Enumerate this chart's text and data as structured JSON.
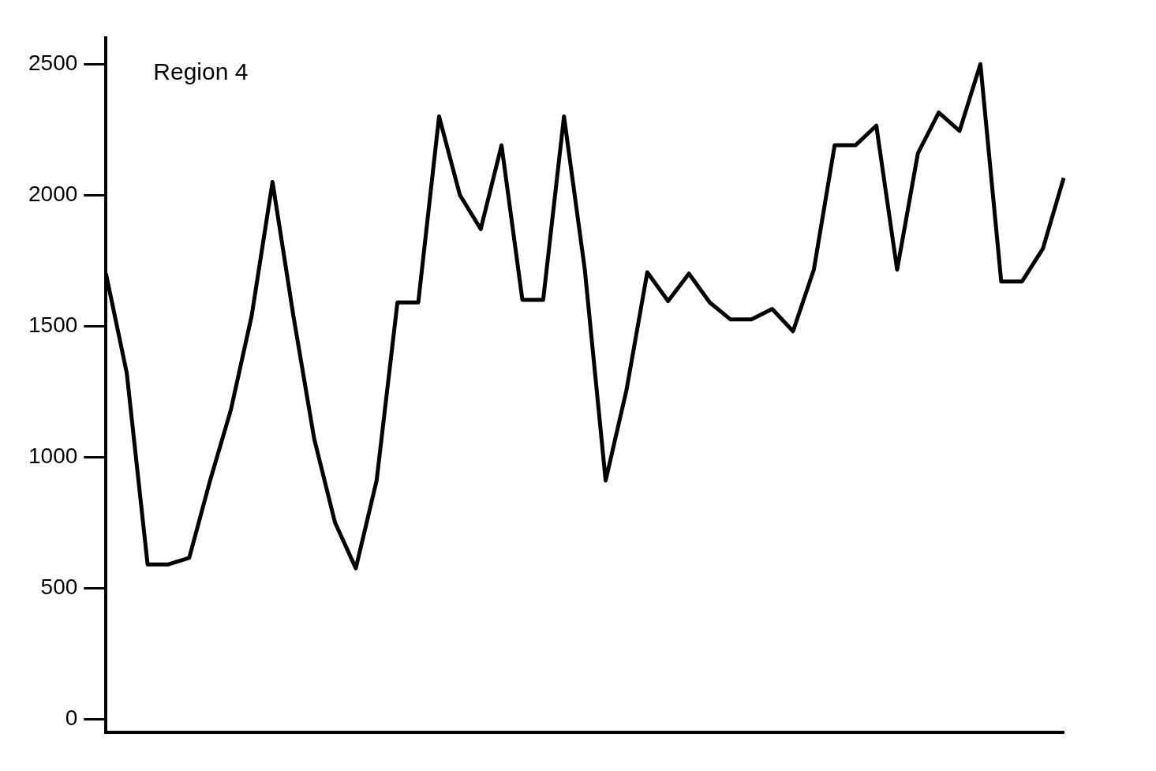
{
  "chart_data": {
    "type": "line",
    "annotations": [
      "Region 4"
    ],
    "categories": [
      null,
      null,
      null,
      null,
      null,
      null,
      null,
      null,
      null,
      null,
      null,
      null,
      null,
      null,
      null,
      null,
      null,
      null,
      null,
      null,
      null,
      null,
      null,
      null,
      null,
      null,
      null,
      null,
      null,
      null,
      null,
      null,
      null,
      null,
      null,
      null,
      null,
      null,
      null,
      null,
      null,
      null,
      null,
      null,
      null,
      null,
      null
    ],
    "series": [
      {
        "color": "#000000",
        "values": [
          1700,
          1320,
          590,
          590,
          615,
          910,
          1180,
          1540,
          2050,
          1540,
          1070,
          750,
          575,
          910,
          1590,
          1590,
          2300,
          2000,
          1870,
          2190,
          1600,
          1600,
          2300,
          1715,
          910,
          1255,
          1705,
          1595,
          1700,
          1590,
          1525,
          1525,
          1565,
          1480,
          1715,
          2190,
          2190,
          2265,
          1715,
          2160,
          2315,
          2245,
          2500,
          1670,
          1670,
          1795,
          2065
        ]
      }
    ],
    "ylim": [
      -50,
      2600
    ],
    "yticks": [
      0,
      500,
      1000,
      1500,
      2000,
      2500
    ],
    "grid": false,
    "legend": false,
    "marker": "none",
    "line_style": "solid"
  }
}
